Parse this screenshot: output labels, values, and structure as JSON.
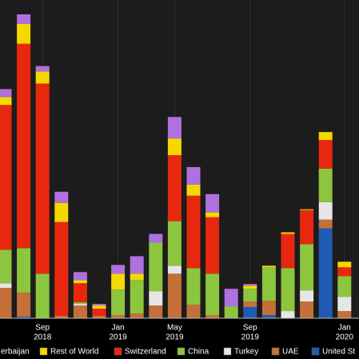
{
  "chart_data": {
    "type": "stacked-bar",
    "categories": [
      null,
      null,
      "Sep",
      null,
      null,
      null,
      "Jan",
      null,
      null,
      "May",
      null,
      null,
      null,
      "Sep",
      null,
      null,
      null,
      null,
      "Jan"
    ],
    "category_years": [
      null,
      null,
      "2018",
      null,
      null,
      null,
      "2019",
      null,
      null,
      "2019",
      null,
      null,
      null,
      "2019",
      null,
      null,
      null,
      null,
      "2020"
    ],
    "ylim": [
      0,
      400
    ],
    "series": [
      {
        "name": "erbaijan",
        "color": "#b070e0",
        "values": [
          10,
          12,
          7,
          14,
          10,
          2,
          11,
          22,
          11,
          27,
          22,
          23,
          22,
          2,
          0,
          0,
          0,
          0,
          0
        ]
      },
      {
        "name": "Rest of World",
        "color": "#f5d800",
        "values": [
          10,
          25,
          15,
          24,
          4,
          4,
          20,
          8,
          0,
          21,
          14,
          6,
          0,
          4,
          2,
          2,
          1,
          10,
          7
        ]
      },
      {
        "name": "Switzerland",
        "color": "#e8280e",
        "values": [
          182,
          257,
          239,
          118,
          24,
          9,
          0,
          0,
          0,
          83,
          91,
          71,
          0,
          0,
          0,
          43,
          43,
          36,
          11
        ]
      },
      {
        "name": "China",
        "color": "#8cc63f",
        "values": [
          42,
          56,
          56,
          0,
          2,
          0,
          32,
          42,
          61,
          56,
          46,
          52,
          15,
          16,
          42,
          54,
          58,
          42,
          26
        ]
      },
      {
        "name": "Turkey",
        "color": "#e6e6e6",
        "values": [
          6,
          0,
          0,
          0,
          2,
          0,
          0,
          0,
          18,
          10,
          0,
          0,
          0,
          0,
          0,
          9,
          14,
          22,
          18
        ]
      },
      {
        "name": "UAE",
        "color": "#c47038",
        "values": [
          38,
          30,
          0,
          3,
          16,
          3,
          4,
          6,
          16,
          56,
          17,
          4,
          0,
          7,
          18,
          0,
          21,
          11,
          9
        ]
      },
      {
        "name": "United St",
        "color": "#1f5bb5",
        "values": [
          0,
          2,
          0,
          0,
          0,
          0,
          0,
          0,
          0,
          0,
          0,
          0,
          0,
          14,
          4,
          0,
          0,
          113,
          0
        ]
      }
    ]
  }
}
